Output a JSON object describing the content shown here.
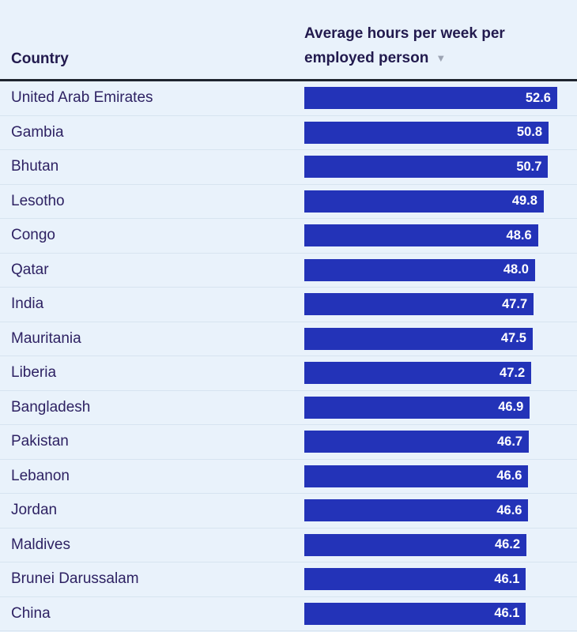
{
  "page": {
    "background_color": "#e9f2fb"
  },
  "table": {
    "country_header": "Country",
    "value_header": "Average hours per week per employed person",
    "sort_icon": "▼",
    "sort_state": "descending"
  },
  "colors": {
    "bar": "#2333b8",
    "bar_value_text": "#ffffff",
    "header_text": "#221a4e",
    "country_text": "#2e2263",
    "header_rule": "#1e242e",
    "row_separator": "#d7e4f0",
    "sort_arrow": "#9da5b4"
  },
  "chart_data": {
    "type": "bar",
    "orientation": "horizontal",
    "title": "",
    "columns": [
      "Country",
      "Average hours per week per employed person"
    ],
    "categories": [
      "United Arab Emirates",
      "Gambia",
      "Bhutan",
      "Lesotho",
      "Congo",
      "Qatar",
      "India",
      "Mauritania",
      "Liberia",
      "Bangladesh",
      "Pakistan",
      "Lebanon",
      "Jordan",
      "Maldives",
      "Brunei Darussalam",
      "China"
    ],
    "values": [
      52.6,
      50.8,
      50.7,
      49.8,
      48.6,
      48.0,
      47.7,
      47.5,
      47.2,
      46.9,
      46.7,
      46.6,
      46.6,
      46.2,
      46.1,
      46.1
    ],
    "value_labels": [
      "52.6",
      "50.8",
      "50.7",
      "49.8",
      "48.6",
      "48.0",
      "47.7",
      "47.5",
      "47.2",
      "46.9",
      "46.7",
      "46.6",
      "46.6",
      "46.2",
      "46.1",
      "46.1"
    ],
    "xlim": [
      0,
      52.6
    ],
    "sort": "descending",
    "grid": false,
    "legend": false
  }
}
